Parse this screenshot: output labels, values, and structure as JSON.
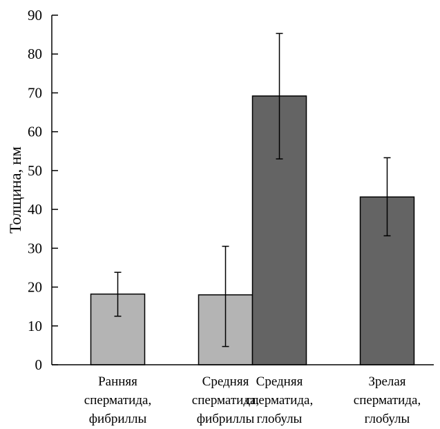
{
  "chart_data": {
    "type": "bar",
    "ylabel": "Толщина, нм",
    "xlabel": "",
    "ylim": [
      0,
      90
    ],
    "yticks": [
      0,
      10,
      20,
      30,
      40,
      50,
      60,
      70,
      80,
      90
    ],
    "grid": false,
    "categories": [
      [
        "Ранняя",
        "сперматида,",
        "фибриллы"
      ],
      [
        "Средняя",
        "сперматида,",
        "фибриллы"
      ],
      [
        "Средняя",
        "сперматида,",
        "глобулы"
      ],
      [
        "Зрелая",
        "сперматида,",
        "глобулы"
      ]
    ],
    "bars": [
      {
        "value": 18.2,
        "err_low": 12.5,
        "err_high": 23.8,
        "color": "#b4b4b4"
      },
      {
        "value": 18.0,
        "err_low": 4.7,
        "err_high": 30.5,
        "color": "#b4b4b4"
      },
      {
        "value": 69.2,
        "err_low": 53.0,
        "err_high": 85.3,
        "color": "#646464"
      },
      {
        "value": 43.2,
        "err_low": 33.2,
        "err_high": 53.3,
        "color": "#646464"
      }
    ]
  }
}
